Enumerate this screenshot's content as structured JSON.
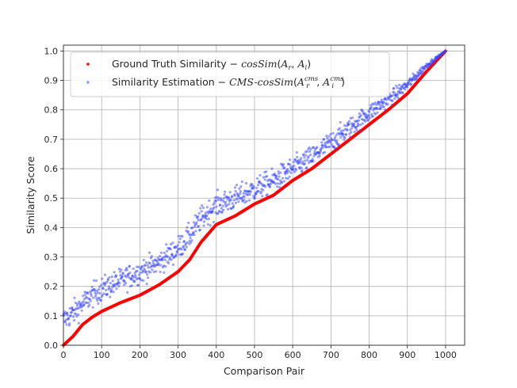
{
  "chart_data": {
    "type": "scatter",
    "title": "",
    "xlabel": "Comparison Pair",
    "ylabel": "Similarity Score",
    "xlim": [
      0,
      1050
    ],
    "ylim": [
      0.0,
      1.02
    ],
    "xticks": [
      0,
      100,
      200,
      300,
      400,
      500,
      600,
      700,
      800,
      900,
      1000
    ],
    "yticks": [
      0.0,
      0.1,
      0.2,
      0.3,
      0.4,
      0.5,
      0.6,
      0.7,
      0.8,
      0.9,
      1.0
    ],
    "grid": true,
    "legend_position": "top-left",
    "legend": [
      {
        "label": "Ground Truth Similarity − ",
        "formula": "cosSim(A_r, A_i)",
        "color": "#ff0000"
      },
      {
        "label": "Similarity Estimation − ",
        "formula": "CMS-cosSim(A_r^cms, A_i^cms)",
        "color": "#3344ff"
      }
    ],
    "series": [
      {
        "name": "Ground Truth Similarity",
        "color": "#ff0000",
        "n_points": 1000,
        "x": [
          0,
          25,
          50,
          75,
          100,
          150,
          200,
          250,
          300,
          330,
          360,
          400,
          450,
          500,
          550,
          600,
          650,
          700,
          750,
          800,
          850,
          900,
          950,
          1000
        ],
        "y": [
          0.0,
          0.03,
          0.07,
          0.095,
          0.115,
          0.145,
          0.17,
          0.205,
          0.25,
          0.29,
          0.35,
          0.41,
          0.44,
          0.48,
          0.51,
          0.56,
          0.6,
          0.65,
          0.7,
          0.75,
          0.8,
          0.855,
          0.93,
          1.0
        ]
      },
      {
        "name": "Similarity Estimation",
        "color": "#3344ff",
        "n_points": 1000,
        "noise": 0.02,
        "x": [
          0,
          25,
          50,
          75,
          100,
          150,
          200,
          250,
          300,
          330,
          360,
          400,
          450,
          500,
          550,
          600,
          650,
          700,
          750,
          800,
          850,
          900,
          950,
          1000
        ],
        "y": [
          0.085,
          0.11,
          0.14,
          0.17,
          0.19,
          0.22,
          0.25,
          0.28,
          0.33,
          0.37,
          0.43,
          0.475,
          0.5,
          0.53,
          0.56,
          0.6,
          0.64,
          0.69,
          0.74,
          0.79,
          0.835,
          0.885,
          0.95,
          1.0
        ]
      }
    ]
  }
}
